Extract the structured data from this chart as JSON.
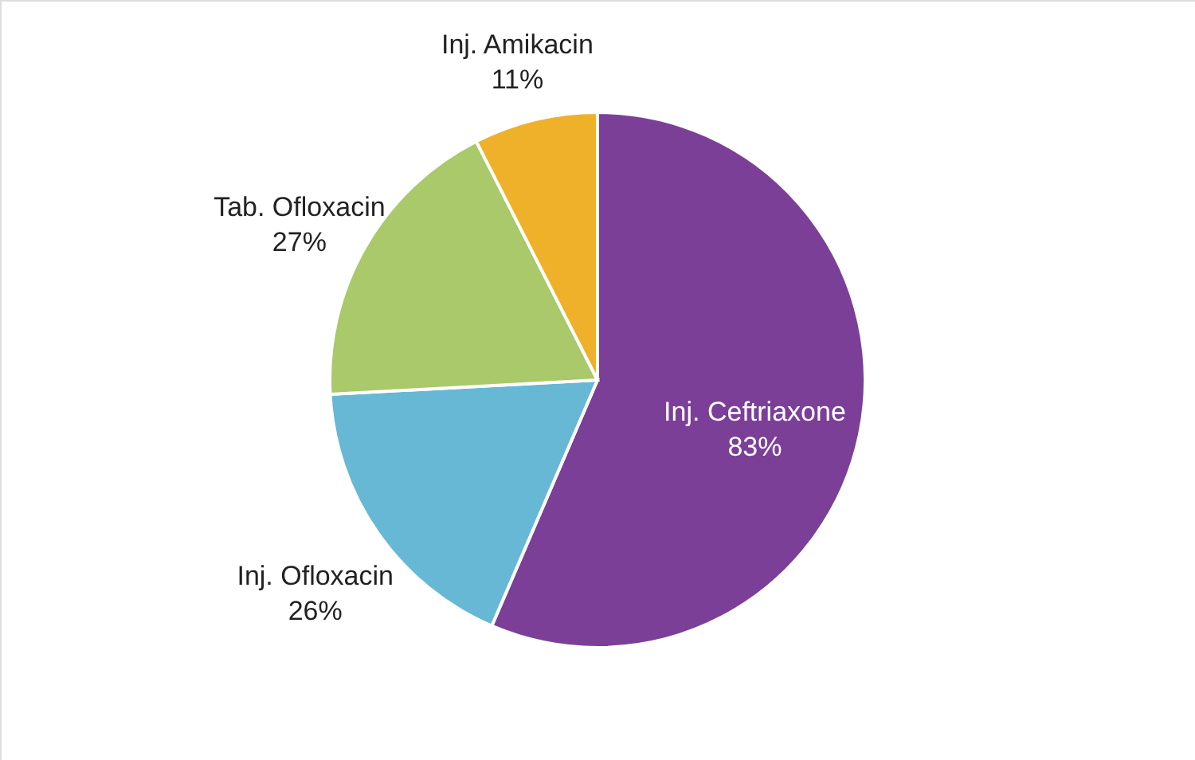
{
  "chart_data": {
    "type": "pie",
    "categories": [
      "Inj. Ceftriaxone",
      "Inj. Ofloxacin",
      "Tab. Ofloxacin",
      "Inj. Amikacin"
    ],
    "values": [
      83,
      26,
      27,
      11
    ],
    "value_labels": [
      "83%",
      "26%",
      "27%",
      "11%"
    ],
    "colors": [
      "#7b3f98",
      "#67b8d4",
      "#a9c96a",
      "#efb02a"
    ]
  }
}
